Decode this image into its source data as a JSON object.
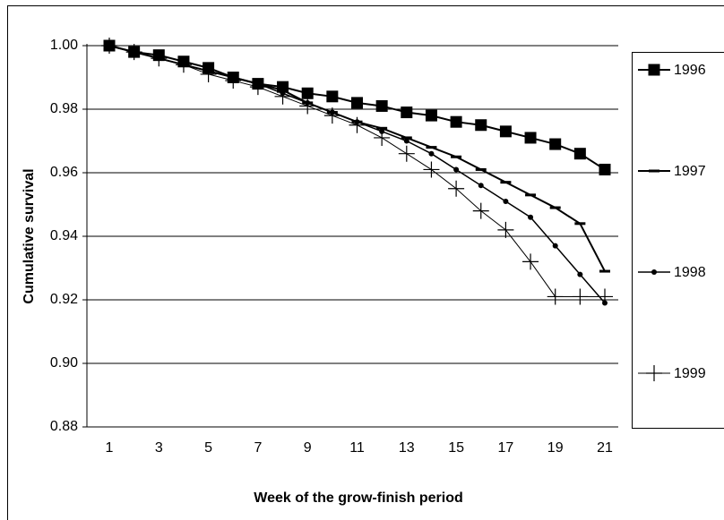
{
  "chart_data": {
    "type": "line",
    "xlabel": "Week of the grow-finish period",
    "ylabel": "Cumulative survival",
    "categories": [
      "1",
      null,
      "3",
      null,
      "5",
      null,
      "7",
      null,
      "9",
      null,
      "11",
      null,
      "13",
      null,
      "15",
      null,
      "17",
      null,
      "19",
      null,
      "21"
    ],
    "ylim": [
      0.88,
      1.0
    ],
    "yticks": [
      {
        "value": 0.88,
        "label": "0.88"
      },
      {
        "value": 0.9,
        "label": "0.90"
      },
      {
        "value": 0.92,
        "label": "0.92"
      },
      {
        "value": 0.94,
        "label": "0.94"
      },
      {
        "value": 0.96,
        "label": "0.96"
      },
      {
        "value": 0.98,
        "label": "0.98"
      },
      {
        "value": 1.0,
        "label": "1.00"
      }
    ],
    "grid": true,
    "legend": "right",
    "series": [
      {
        "name": "1996",
        "color": "#000000",
        "marker": "square",
        "values": [
          1.0,
          0.998,
          0.997,
          0.995,
          0.993,
          0.99,
          0.988,
          0.987,
          0.985,
          0.984,
          0.982,
          0.981,
          0.979,
          0.978,
          0.976,
          0.975,
          0.973,
          0.971,
          0.969,
          0.966,
          0.961
        ]
      },
      {
        "name": "1997",
        "color": "#000000",
        "marker": "dash",
        "values": [
          1.0,
          0.998,
          0.996,
          0.994,
          0.992,
          0.99,
          0.988,
          0.986,
          0.982,
          0.979,
          0.976,
          0.974,
          0.971,
          0.968,
          0.965,
          0.961,
          0.957,
          0.953,
          0.949,
          0.944,
          0.929
        ]
      },
      {
        "name": "1998",
        "color": "#000000",
        "marker": "circle",
        "values": [
          1.0,
          0.998,
          0.996,
          0.994,
          0.992,
          0.99,
          0.988,
          0.985,
          0.982,
          0.979,
          0.976,
          0.973,
          0.97,
          0.966,
          0.961,
          0.956,
          0.951,
          0.946,
          0.937,
          0.928,
          0.919
        ]
      },
      {
        "name": "1999",
        "color": "#000000",
        "marker": "plus",
        "values": [
          1.0,
          0.998,
          0.996,
          0.994,
          0.991,
          0.989,
          0.987,
          0.984,
          0.981,
          0.978,
          0.975,
          0.971,
          0.966,
          0.961,
          0.955,
          0.948,
          0.942,
          0.932,
          0.921,
          0.921,
          0.921
        ]
      }
    ]
  }
}
